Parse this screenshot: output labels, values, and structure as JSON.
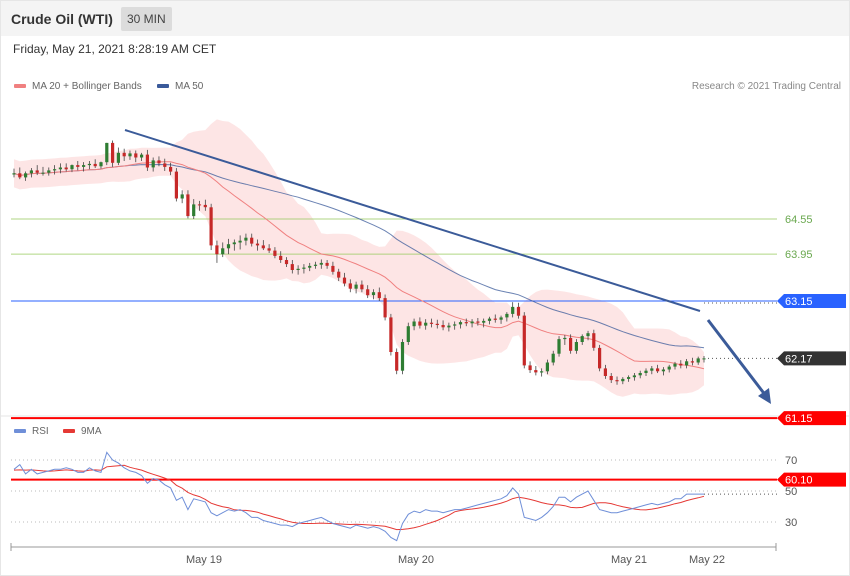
{
  "header": {
    "title": "Crude Oil (WTI)",
    "timeframe": "30 MIN",
    "date": "Friday, May 21, 2021 8:28:19 AM CET"
  },
  "legend": {
    "ma20": "MA 20 + Bollinger Bands",
    "ma50": "MA 50",
    "copyright": "Research © 2021 Trading Central",
    "rsi": "RSI",
    "rsi_ma": "9MA"
  },
  "colors": {
    "bull": "#2e7d32",
    "bear": "#c62828",
    "ma20": "#f08080",
    "band": "#fde0e0",
    "ma50": "#3a5a9a",
    "trend": "#3b5b99",
    "resistance_green": "#9ccc65",
    "pivot_blue": "#2962ff",
    "support_red": "#ff0000",
    "rsi": "#6f8fd8",
    "rsi_ma": "#e53935"
  },
  "chart_data": [
    {
      "type": "candlestick",
      "title": "Crude Oil (WTI)",
      "interval": "30 MIN",
      "x_ticks": [
        "May 19",
        "May 20",
        "May 21",
        "May 22"
      ],
      "y_range": [
        59.8,
        65.3
      ],
      "last_price": "62.17",
      "levels": [
        {
          "label": "64.55",
          "value": 64.55,
          "kind": "resistance"
        },
        {
          "label": "63.95",
          "value": 63.95,
          "kind": "resistance"
        },
        {
          "label": "63.15",
          "value": 63.15,
          "kind": "pivot"
        },
        {
          "label": "61.15",
          "value": 61.15,
          "kind": "support"
        },
        {
          "label": "60.10",
          "value": 60.1,
          "kind": "support"
        }
      ],
      "ohlc": [
        [
          65.31,
          65.41,
          65.26,
          65.33
        ],
        [
          65.33,
          65.43,
          65.23,
          65.26
        ],
        [
          65.26,
          65.36,
          65.2,
          65.33
        ],
        [
          65.33,
          65.42,
          65.26,
          65.38
        ],
        [
          65.38,
          65.47,
          65.3,
          65.34
        ],
        [
          65.34,
          65.44,
          65.29,
          65.34
        ],
        [
          65.34,
          65.43,
          65.29,
          65.38
        ],
        [
          65.38,
          65.47,
          65.31,
          65.4
        ],
        [
          65.4,
          65.5,
          65.33,
          65.43
        ],
        [
          65.43,
          65.5,
          65.36,
          65.4
        ],
        [
          65.4,
          65.48,
          65.35,
          65.47
        ],
        [
          65.47,
          65.54,
          65.38,
          65.44
        ],
        [
          65.44,
          65.52,
          65.36,
          65.47
        ],
        [
          65.47,
          65.54,
          65.4,
          65.49
        ],
        [
          65.49,
          65.57,
          65.42,
          65.45
        ],
        [
          65.45,
          65.53,
          65.41,
          65.52
        ],
        [
          65.52,
          65.85,
          65.47,
          65.85
        ],
        [
          65.85,
          65.89,
          65.44,
          65.51
        ],
        [
          65.51,
          65.77,
          65.47,
          65.68
        ],
        [
          65.68,
          65.75,
          65.54,
          65.62
        ],
        [
          65.62,
          65.72,
          65.56,
          65.67
        ],
        [
          65.67,
          65.72,
          65.52,
          65.6
        ],
        [
          65.6,
          65.68,
          65.54,
          65.65
        ],
        [
          65.65,
          65.73,
          65.37,
          65.43
        ],
        [
          65.43,
          65.6,
          65.36,
          65.55
        ],
        [
          65.55,
          65.62,
          65.45,
          65.5
        ],
        [
          65.5,
          65.58,
          65.37,
          65.44
        ],
        [
          65.44,
          65.51,
          65.3,
          65.36
        ],
        [
          65.36,
          65.42,
          64.85,
          64.9
        ],
        [
          64.9,
          65.04,
          64.82,
          64.97
        ],
        [
          64.97,
          65.04,
          64.56,
          64.6
        ],
        [
          64.6,
          64.89,
          64.55,
          64.8
        ],
        [
          64.8,
          64.86,
          64.69,
          64.79
        ],
        [
          64.79,
          64.88,
          64.69,
          64.75
        ],
        [
          64.75,
          64.81,
          64.02,
          64.1
        ],
        [
          64.1,
          64.18,
          63.8,
          63.95
        ],
        [
          63.95,
          64.15,
          63.9,
          64.05
        ],
        [
          64.05,
          64.21,
          63.95,
          64.12
        ],
        [
          64.12,
          64.2,
          64.01,
          64.15
        ],
        [
          64.15,
          64.27,
          64.03,
          64.18
        ],
        [
          64.18,
          64.3,
          64.1,
          64.23
        ],
        [
          64.23,
          64.3,
          64.08,
          64.13
        ],
        [
          64.13,
          64.2,
          64.01,
          64.1
        ],
        [
          64.1,
          64.19,
          64.02,
          64.05
        ],
        [
          64.05,
          64.12,
          63.97,
          64.01
        ],
        [
          64.01,
          64.07,
          63.88,
          63.92
        ],
        [
          63.92,
          64.0,
          63.8,
          63.85
        ],
        [
          63.85,
          63.9,
          63.73,
          63.78
        ],
        [
          63.78,
          63.85,
          63.62,
          63.68
        ],
        [
          63.68,
          63.76,
          63.6,
          63.7
        ],
        [
          63.7,
          63.78,
          63.62,
          63.72
        ],
        [
          63.72,
          63.8,
          63.66,
          63.75
        ],
        [
          63.75,
          63.82,
          63.7,
          63.77
        ],
        [
          63.77,
          63.86,
          63.7,
          63.8
        ],
        [
          63.8,
          63.85,
          63.7,
          63.75
        ],
        [
          63.75,
          63.82,
          63.6,
          63.65
        ],
        [
          63.65,
          63.7,
          63.49,
          63.55
        ],
        [
          63.55,
          63.63,
          63.4,
          63.45
        ],
        [
          63.45,
          63.52,
          63.3,
          63.36
        ],
        [
          63.36,
          63.48,
          63.28,
          63.43
        ],
        [
          63.43,
          63.5,
          63.3,
          63.35
        ],
        [
          63.35,
          63.42,
          63.2,
          63.25
        ],
        [
          63.25,
          63.35,
          63.18,
          63.3
        ],
        [
          63.3,
          63.38,
          63.15,
          63.2
        ],
        [
          63.2,
          63.26,
          62.82,
          62.87
        ],
        [
          62.87,
          62.93,
          62.22,
          62.28
        ],
        [
          62.28,
          62.34,
          61.9,
          61.96
        ],
        [
          61.96,
          62.5,
          61.9,
          62.45
        ],
        [
          62.45,
          62.78,
          62.4,
          62.72
        ],
        [
          62.72,
          62.85,
          62.65,
          62.8
        ],
        [
          62.8,
          62.87,
          62.68,
          62.73
        ],
        [
          62.73,
          62.84,
          62.66,
          62.78
        ],
        [
          62.78,
          62.85,
          62.7,
          62.76
        ],
        [
          62.76,
          62.83,
          62.68,
          62.74
        ],
        [
          62.74,
          62.82,
          62.65,
          62.7
        ],
        [
          62.7,
          62.78,
          62.63,
          62.73
        ],
        [
          62.73,
          62.8,
          62.66,
          62.75
        ],
        [
          62.75,
          62.82,
          62.68,
          62.79
        ],
        [
          62.79,
          62.85,
          62.72,
          62.77
        ],
        [
          62.77,
          62.84,
          62.7,
          62.8
        ],
        [
          62.8,
          62.86,
          62.73,
          62.78
        ],
        [
          62.78,
          62.85,
          62.7,
          62.81
        ],
        [
          62.81,
          62.88,
          62.75,
          62.85
        ],
        [
          62.85,
          62.92,
          62.78,
          62.83
        ],
        [
          62.83,
          62.9,
          62.76,
          62.87
        ],
        [
          62.87,
          62.96,
          62.8,
          62.93
        ],
        [
          62.93,
          63.13,
          62.87,
          63.05
        ],
        [
          63.05,
          63.12,
          62.85,
          62.9
        ],
        [
          62.9,
          62.96,
          62.0,
          62.05
        ],
        [
          62.05,
          62.12,
          61.92,
          61.97
        ],
        [
          61.97,
          62.04,
          61.88,
          61.93
        ],
        [
          61.93,
          62.0,
          61.86,
          61.95
        ],
        [
          61.95,
          62.15,
          61.9,
          62.1
        ],
        [
          62.1,
          62.3,
          62.05,
          62.25
        ],
        [
          62.25,
          62.55,
          62.2,
          62.5
        ],
        [
          62.5,
          62.57,
          62.4,
          62.52
        ],
        [
          62.52,
          62.58,
          62.25,
          62.3
        ],
        [
          62.3,
          62.5,
          62.25,
          62.45
        ],
        [
          62.45,
          62.58,
          62.4,
          62.55
        ],
        [
          62.55,
          62.64,
          62.48,
          62.6
        ],
        [
          62.6,
          62.66,
          62.3,
          62.35
        ],
        [
          62.35,
          62.4,
          61.95,
          62.0
        ],
        [
          62.0,
          62.06,
          61.82,
          61.87
        ],
        [
          61.87,
          61.92,
          61.75,
          61.8
        ],
        [
          61.8,
          61.86,
          61.72,
          61.78
        ],
        [
          61.78,
          61.85,
          61.73,
          61.82
        ],
        [
          61.82,
          61.88,
          61.77,
          61.85
        ],
        [
          61.85,
          61.92,
          61.79,
          61.88
        ],
        [
          61.88,
          61.96,
          61.83,
          61.92
        ],
        [
          61.92,
          62.0,
          61.87,
          61.96
        ],
        [
          61.96,
          62.04,
          61.9,
          62.0
        ],
        [
          62.0,
          62.06,
          61.92,
          61.95
        ],
        [
          61.95,
          62.02,
          61.88,
          61.98
        ],
        [
          61.98,
          62.06,
          61.93,
          62.03
        ],
        [
          62.03,
          62.11,
          61.98,
          62.08
        ],
        [
          62.08,
          62.14,
          62.0,
          62.05
        ],
        [
          62.05,
          62.16,
          62.0,
          62.12
        ],
        [
          62.12,
          62.18,
          62.05,
          62.1
        ],
        [
          62.1,
          62.2,
          62.06,
          62.17
        ],
        [
          62.17,
          62.21,
          62.1,
          62.17
        ]
      ]
    },
    {
      "type": "line",
      "title": "RSI",
      "series_names": [
        "RSI",
        "9MA"
      ],
      "y_ticks": [
        "70",
        "50",
        "30"
      ],
      "rsi": [
        64,
        67,
        61,
        64,
        61,
        62,
        63,
        64,
        64,
        65,
        64,
        62,
        62,
        65,
        63,
        62,
        75,
        70,
        68,
        65,
        63,
        62,
        60,
        55,
        58,
        57,
        54,
        52,
        44,
        46,
        38,
        45,
        44,
        43,
        36,
        34,
        36,
        38,
        37,
        38,
        36,
        33,
        33,
        31,
        30,
        29,
        28,
        28,
        27,
        29,
        30,
        31,
        32,
        33,
        31,
        29,
        28,
        27,
        26,
        28,
        27,
        26,
        27,
        26,
        24,
        20,
        18,
        29,
        35,
        37,
        36,
        38,
        37,
        37,
        36,
        37,
        38,
        38,
        39,
        40,
        41,
        42,
        43,
        44,
        45,
        47,
        52,
        48,
        33,
        32,
        31,
        33,
        36,
        40,
        46,
        46,
        43,
        46,
        48,
        50,
        44,
        38,
        37,
        36,
        36,
        37,
        38,
        39,
        40,
        41,
        42,
        41,
        42,
        43,
        45,
        45,
        48,
        48,
        48,
        48
      ],
      "rsi_ma": [
        63.5,
        63.6,
        63.5,
        63.6,
        63.3,
        63.0,
        62.8,
        63.0,
        63.3,
        63.6,
        63.3,
        63.0,
        62.8,
        63.5,
        63.6,
        63.4,
        65.6,
        66.0,
        66.3,
        66.6,
        65.3,
        64.3,
        63.5,
        62.0,
        60.8,
        59.6,
        58.3,
        56.9,
        53.7,
        51.8,
        49.1,
        47.5,
        46.4,
        44.6,
        42.1,
        40.9,
        39.9,
        39.2,
        37.9,
        37.6,
        37.5,
        37.0,
        36.3,
        35.1,
        34.1,
        33.0,
        32.0,
        30.8,
        29.9,
        29.3,
        29.0,
        29.0,
        29.1,
        29.3,
        29.1,
        29.0,
        28.8,
        28.6,
        28.4,
        28.6,
        28.4,
        28.1,
        27.9,
        27.6,
        27.2,
        26.2,
        25.1,
        25.2,
        25.7,
        26.3,
        27.2,
        28.5,
        29.7,
        31.0,
        32.7,
        34.4,
        36.6,
        37.4,
        38.0,
        38.4,
        38.9,
        39.5,
        40.3,
        41.2,
        42.2,
        43.4,
        45.1,
        46.0,
        45.4,
        44.6,
        43.6,
        42.5,
        41.7,
        41.1,
        41.0,
        40.5,
        39.4,
        39.2,
        39.4,
        40.7,
        42.0,
        42.4,
        42.4,
        41.9,
        40.8,
        39.9,
        39.1,
        38.4,
        37.9,
        37.8,
        38.3,
        39.0,
        39.8,
        40.7,
        41.8,
        42.6,
        43.8,
        44.8,
        45.6,
        46.6
      ]
    }
  ]
}
